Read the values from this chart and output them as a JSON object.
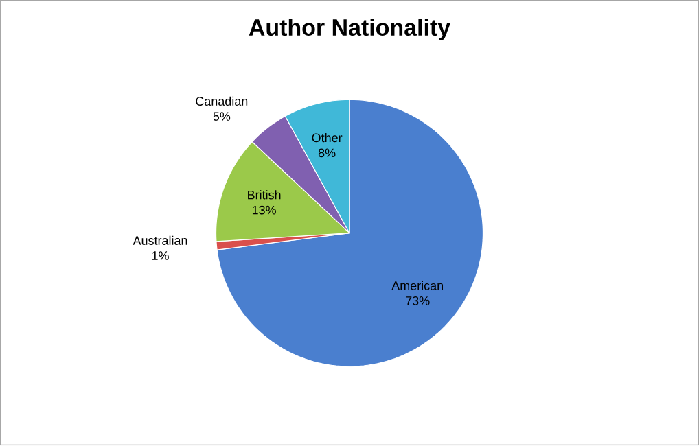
{
  "chart_data": {
    "type": "pie",
    "title": "Author Nationality",
    "categories": [
      "American",
      "Australian",
      "British",
      "Canadian",
      "Other"
    ],
    "values": [
      73,
      1,
      13,
      5,
      8
    ],
    "value_labels": [
      "73%",
      "1%",
      "13%",
      "5%",
      "8%"
    ],
    "colors": [
      "#4a7fcf",
      "#d9504c",
      "#9bc94a",
      "#8060b0",
      "#40b8d8"
    ]
  }
}
